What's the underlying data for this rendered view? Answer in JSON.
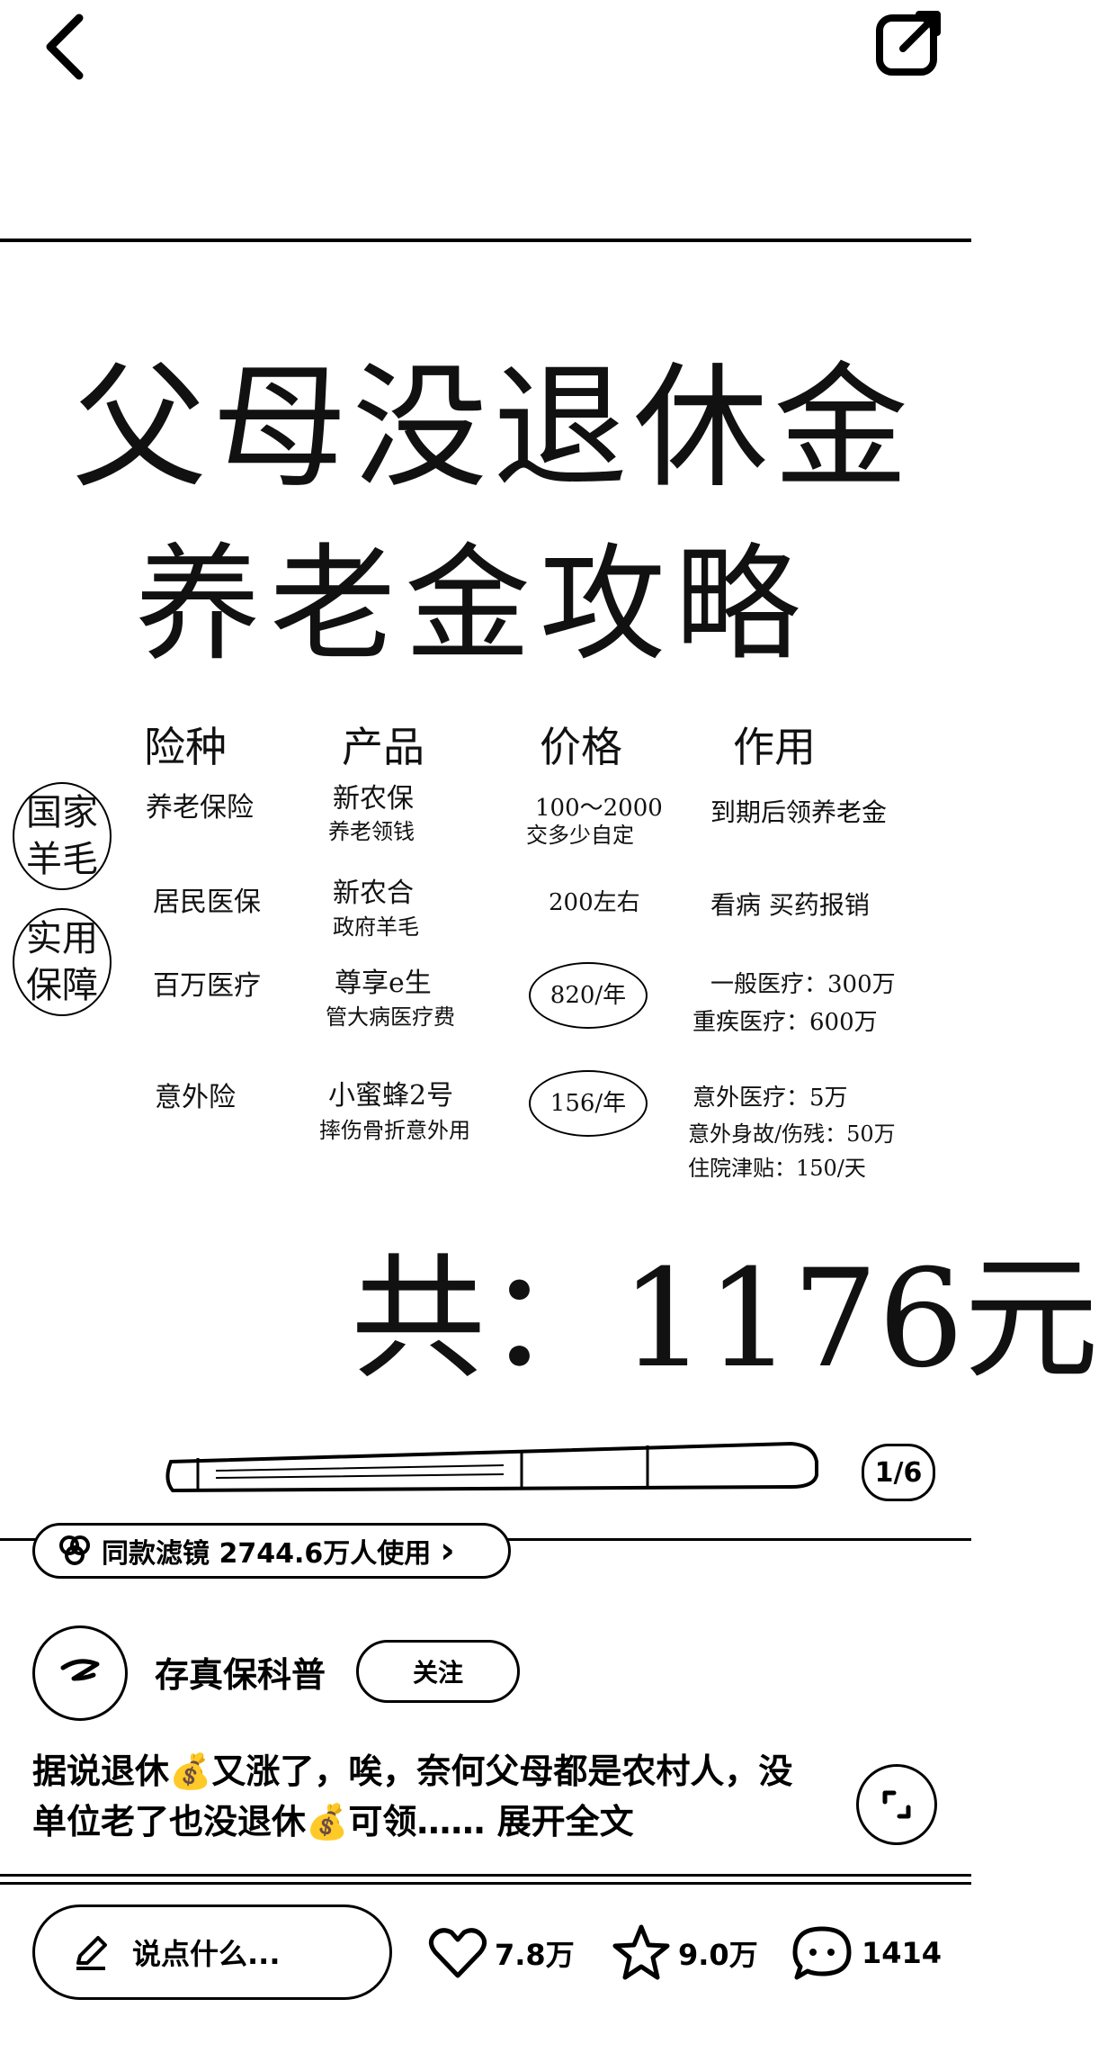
{
  "photo": {
    "title_line1": "父母没退休金",
    "title_line2": "养老金攻略",
    "headers": [
      "险种",
      "产品",
      "价格",
      "作用"
    ],
    "group1_label": "国家羊毛",
    "group2_label": "实用保障",
    "rows": [
      {
        "type": "养老保险",
        "product_l1": "新农保",
        "product_l2": "养老领钱",
        "price": "100～2000",
        "price_sub": "交多少自定",
        "effect_l1": "到期后领养老金",
        "effect_l2": ""
      },
      {
        "type": "居民医保",
        "product_l1": "新农合",
        "product_l2": "政府羊毛",
        "price": "200左右",
        "price_sub": "",
        "effect_l1": "看病 买药报销",
        "effect_l2": ""
      },
      {
        "type": "百万医疗",
        "product_l1": "尊享e生",
        "product_l2": "管大病医疗费",
        "price": "820/年",
        "price_sub": "",
        "effect_l1": "一般医疗：300万",
        "effect_l2": "重疾医疗：600万"
      },
      {
        "type": "意外险",
        "product_l1": "小蜜蜂2号",
        "product_l2": "摔伤骨折意外用",
        "price": "156/年",
        "price_sub": "",
        "effect_l1": "意外医疗：5万",
        "effect_l2": "意外身故/伤残：50万",
        "effect_l3": "住院津贴：150/天"
      }
    ],
    "total": "共：1176元",
    "counter": "1/6"
  },
  "filter": {
    "text": "同款滤镜 2744.6万人使用",
    "arrow": "›"
  },
  "author": {
    "name": "存真保科普",
    "follow": "关注"
  },
  "caption": {
    "text": "据说退休💰又涨了，唉，奈何父母都是农村人，没单位老了也没退休💰可领……",
    "expand": "展开全文"
  },
  "bottom": {
    "placeholder": "说点什么...",
    "likes": "7.8万",
    "stars": "9.0万",
    "comments": "1414"
  }
}
